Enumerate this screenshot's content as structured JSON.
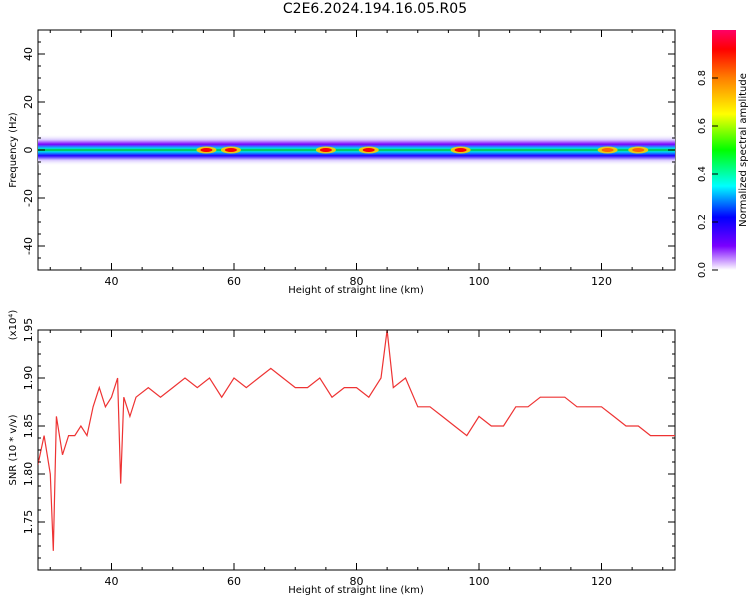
{
  "title": "C2E6.2024.194.16.05.R05",
  "colors": {
    "snr_line": "#ee3333",
    "axis": "#000000"
  },
  "colorbar": {
    "label": "Normalized spectral amplitude",
    "ticks": [
      "0.0",
      "0.2",
      "0.4",
      "0.6",
      "0.8"
    ],
    "tick_values": [
      0.0,
      0.2,
      0.4,
      0.6,
      0.8
    ],
    "range": [
      0,
      1
    ],
    "colormap": "rainbow"
  },
  "chart_data": [
    {
      "type": "heatmap",
      "xlabel": "Height of straight line (km)",
      "ylabel": "Frequency (Hz)",
      "xlim": [
        28,
        132
      ],
      "ylim": [
        -50,
        50
      ],
      "xticks": [
        "40",
        "60",
        "80",
        "100",
        "120"
      ],
      "xtick_values": [
        40,
        60,
        80,
        100,
        120
      ],
      "yticks": [
        "-40",
        "-20",
        "0",
        "20",
        "40"
      ],
      "ytick_values": [
        -40,
        -20,
        0,
        20,
        40
      ],
      "band_center_hz": 0,
      "band_halfwidth_hz": 3,
      "hotspots": [
        {
          "x": 55.5,
          "amp": 1.0
        },
        {
          "x": 59.5,
          "amp": 1.0
        },
        {
          "x": 75,
          "amp": 0.95
        },
        {
          "x": 82,
          "amp": 0.95
        },
        {
          "x": 97,
          "amp": 0.95
        },
        {
          "x": 121,
          "amp": 0.9
        },
        {
          "x": 126,
          "amp": 0.85
        }
      ]
    },
    {
      "type": "line",
      "xlabel": "Height of straight line (km)",
      "ylabel": "SNR (10 * v/v)",
      "y_multiplier": "(x10⁴)",
      "xlim": [
        28,
        132
      ],
      "ylim": [
        1.7,
        1.95
      ],
      "xticks": [
        "40",
        "60",
        "80",
        "100",
        "120"
      ],
      "xtick_values": [
        40,
        60,
        80,
        100,
        120
      ],
      "yticks": [
        "1.75",
        "1.80",
        "1.85",
        "1.90",
        "1.95"
      ],
      "ytick_values": [
        1.75,
        1.8,
        1.85,
        1.9,
        1.95
      ],
      "series": [
        {
          "x": [
            28,
            29,
            30,
            30.5,
            31,
            32,
            33,
            34,
            35,
            36,
            37,
            38,
            39,
            40,
            41,
            41.5,
            42,
            43,
            44,
            46,
            48,
            50,
            52,
            54,
            56,
            58,
            60,
            62,
            64,
            66,
            68,
            70,
            72,
            74,
            76,
            78,
            80,
            82,
            84,
            85,
            86,
            88,
            90,
            92,
            94,
            96,
            98,
            100,
            102,
            104,
            106,
            108,
            110,
            112,
            114,
            116,
            118,
            120,
            122,
            124,
            126,
            128,
            130,
            132
          ],
          "y": [
            1.81,
            1.84,
            1.8,
            1.72,
            1.86,
            1.82,
            1.84,
            1.84,
            1.85,
            1.84,
            1.87,
            1.89,
            1.87,
            1.88,
            1.9,
            1.79,
            1.88,
            1.86,
            1.88,
            1.89,
            1.88,
            1.89,
            1.9,
            1.89,
            1.9,
            1.88,
            1.9,
            1.89,
            1.9,
            1.91,
            1.9,
            1.89,
            1.89,
            1.9,
            1.88,
            1.89,
            1.89,
            1.88,
            1.9,
            1.95,
            1.89,
            1.9,
            1.87,
            1.87,
            1.86,
            1.85,
            1.84,
            1.86,
            1.85,
            1.85,
            1.87,
            1.87,
            1.88,
            1.88,
            1.88,
            1.87,
            1.87,
            1.87,
            1.86,
            1.85,
            1.85,
            1.84,
            1.84,
            1.84
          ]
        }
      ]
    }
  ]
}
